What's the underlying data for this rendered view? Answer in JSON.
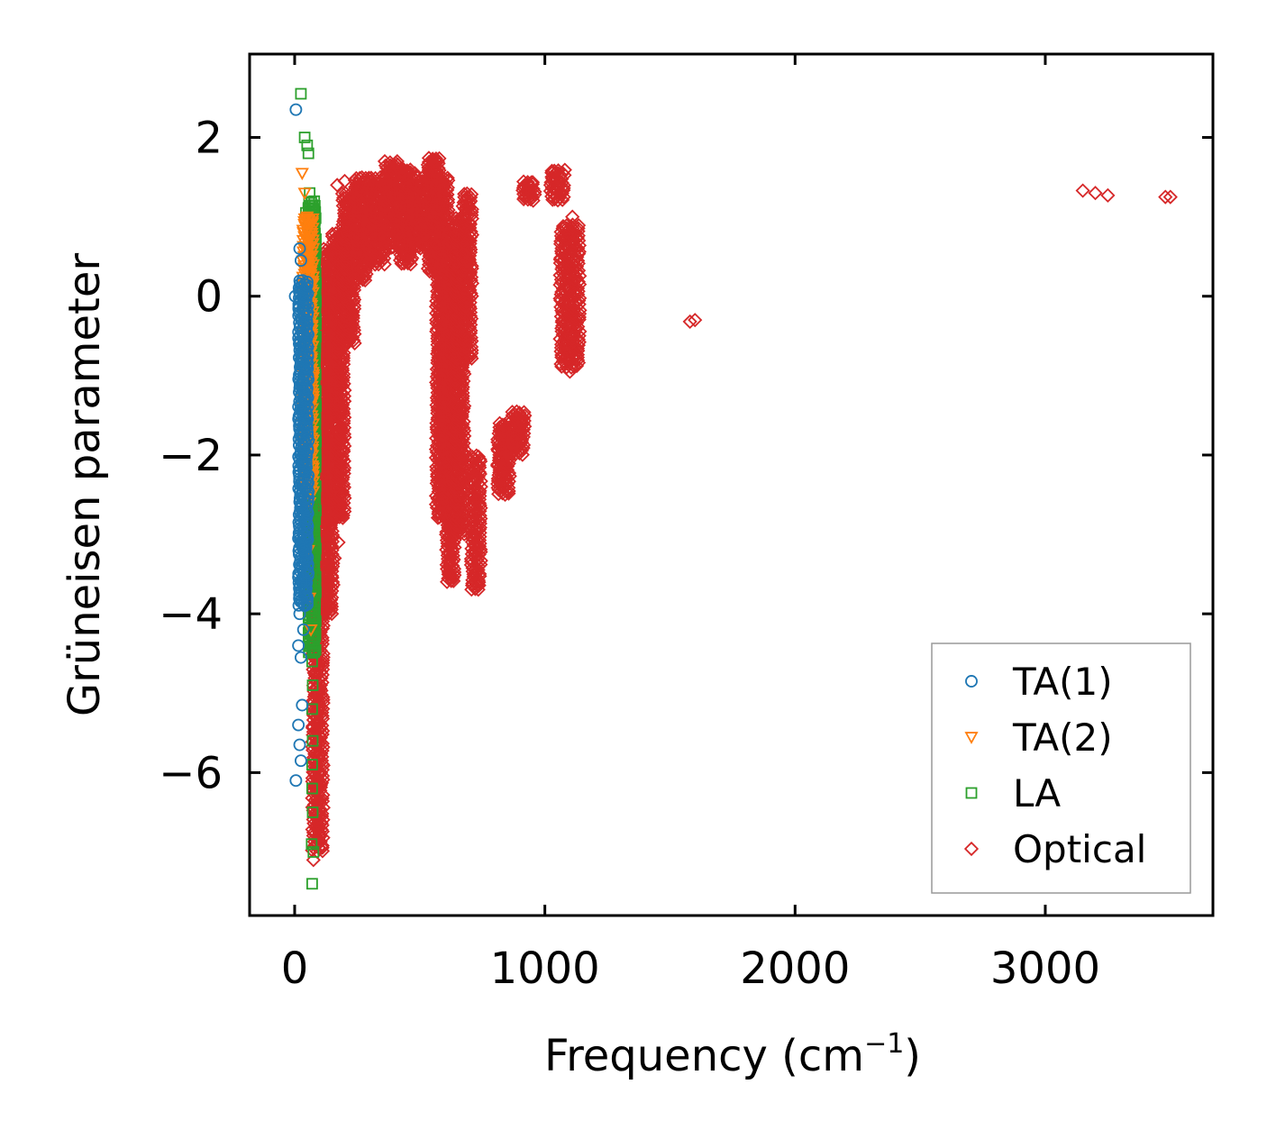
{
  "chart_data": {
    "type": "scatter",
    "title": "",
    "xlabel": "Frequency (cm",
    "xlabel_superscript": "−1",
    "xlabel_suffix": ")",
    "ylabel": "Grüneisen parameter",
    "xlim": [
      -180,
      3670
    ],
    "ylim": [
      -7.8,
      3.05
    ],
    "xticks": [
      0,
      1000,
      2000,
      3000
    ],
    "xtick_labels": [
      "0",
      "1000",
      "2000",
      "3000"
    ],
    "yticks": [
      2,
      0,
      -2,
      -4,
      -6
    ],
    "ytick_labels": [
      "2",
      "0",
      "−2",
      "−4",
      "−6"
    ],
    "grid": false,
    "legend_position": "lower-right",
    "series": [
      {
        "name": "TA(1)",
        "marker": "circle",
        "color": "#1f77b4",
        "points": [
          [
            5,
            2.35
          ],
          [
            20,
            0.6
          ],
          [
            25,
            0.45
          ],
          [
            2,
            0.0
          ],
          [
            18,
            -0.6
          ],
          [
            25,
            -0.8
          ],
          [
            30,
            -1.1
          ],
          [
            20,
            -1.6
          ],
          [
            28,
            -2.1
          ],
          [
            30,
            -2.5
          ],
          [
            15,
            -3.05
          ],
          [
            35,
            -3.2
          ],
          [
            28,
            -3.6
          ],
          [
            40,
            -3.9
          ],
          [
            20,
            -4.0
          ],
          [
            35,
            -4.2
          ],
          [
            15,
            -4.4
          ],
          [
            25,
            -4.55
          ],
          [
            30,
            -5.15
          ],
          [
            15,
            -5.4
          ],
          [
            20,
            -5.65
          ],
          [
            25,
            -5.85
          ],
          [
            5,
            -6.1
          ]
        ],
        "bands": [
          [
            15,
            55,
            -3.9,
            0.2
          ]
        ]
      },
      {
        "name": "TA(2)",
        "marker": "triangle-down",
        "color": "#ff7f0e",
        "points": [
          [
            30,
            1.55
          ],
          [
            40,
            1.3
          ],
          [
            50,
            1.0
          ],
          [
            35,
            0.8
          ],
          [
            45,
            0.6
          ],
          [
            55,
            0.2
          ],
          [
            40,
            -0.2
          ],
          [
            60,
            -0.5
          ],
          [
            55,
            -1.2
          ],
          [
            50,
            -2.0
          ],
          [
            60,
            -2.6
          ],
          [
            55,
            -3.2
          ],
          [
            60,
            -3.8
          ],
          [
            65,
            -4.2
          ]
        ],
        "bands": [
          [
            30,
            75,
            -2.5,
            1.0
          ]
        ]
      },
      {
        "name": "LA",
        "marker": "square",
        "color": "#2ca02c",
        "points": [
          [
            25,
            2.55
          ],
          [
            40,
            2.0
          ],
          [
            50,
            1.9
          ],
          [
            55,
            1.8
          ],
          [
            60,
            1.3
          ],
          [
            55,
            1.1
          ],
          [
            45,
            1.05
          ],
          [
            65,
            0.9
          ],
          [
            70,
            0.1
          ],
          [
            75,
            -0.5
          ],
          [
            72,
            -1.5
          ],
          [
            75,
            -2.0
          ],
          [
            70,
            -2.6
          ],
          [
            75,
            -3.4
          ],
          [
            78,
            -4.0
          ],
          [
            70,
            -4.6
          ],
          [
            72,
            -4.9
          ],
          [
            70,
            -5.2
          ],
          [
            72,
            -5.6
          ],
          [
            70,
            -5.9
          ],
          [
            70,
            -6.2
          ],
          [
            72,
            -6.5
          ],
          [
            68,
            -6.9
          ],
          [
            75,
            -7.0
          ],
          [
            70,
            -7.4
          ]
        ],
        "bands": [
          [
            55,
            85,
            -4.5,
            1.2
          ]
        ]
      },
      {
        "name": "Optical",
        "marker": "diamond",
        "color": "#d62728",
        "points": [
          [
            75,
            -7.1
          ],
          [
            85,
            -6.5
          ],
          [
            80,
            -6.0
          ],
          [
            90,
            -5.3
          ],
          [
            95,
            -4.6
          ],
          [
            110,
            -3.8
          ],
          [
            160,
            -3.3
          ],
          [
            175,
            -3.1
          ],
          [
            185,
            -2.5
          ],
          [
            200,
            1.45
          ],
          [
            170,
            1.4
          ],
          [
            480,
            1.55
          ],
          [
            700,
            -2.05
          ],
          [
            1110,
            1.0
          ],
          [
            1100,
            -0.95
          ],
          [
            1580,
            -0.32
          ],
          [
            1600,
            -0.3
          ],
          [
            3150,
            1.33
          ],
          [
            3200,
            1.3
          ],
          [
            3250,
            1.27
          ],
          [
            3480,
            1.25
          ],
          [
            3500,
            1.25
          ]
        ],
        "bands": [
          [
            70,
            115,
            -7.0,
            0.3
          ],
          [
            110,
            155,
            -4.0,
            0.6
          ],
          [
            150,
            200,
            -2.8,
            0.8
          ],
          [
            190,
            240,
            -0.6,
            1.3
          ],
          [
            240,
            290,
            0.2,
            1.5
          ],
          [
            290,
            360,
            0.4,
            1.5
          ],
          [
            360,
            420,
            0.6,
            1.7
          ],
          [
            420,
            470,
            0.4,
            1.6
          ],
          [
            470,
            530,
            0.6,
            1.5
          ],
          [
            530,
            580,
            0.3,
            1.75
          ],
          [
            565,
            615,
            -2.8,
            1.5
          ],
          [
            605,
            640,
            -3.6,
            0.8
          ],
          [
            640,
            680,
            -3.0,
            1.0
          ],
          [
            670,
            710,
            -0.8,
            1.3
          ],
          [
            705,
            745,
            -3.7,
            -2.0
          ],
          [
            810,
            860,
            -2.5,
            -1.6
          ],
          [
            860,
            920,
            -2.0,
            -1.45
          ],
          [
            910,
            960,
            1.2,
            1.45
          ],
          [
            1020,
            1080,
            1.2,
            1.6
          ],
          [
            1060,
            1140,
            -0.9,
            0.9
          ]
        ]
      }
    ]
  }
}
